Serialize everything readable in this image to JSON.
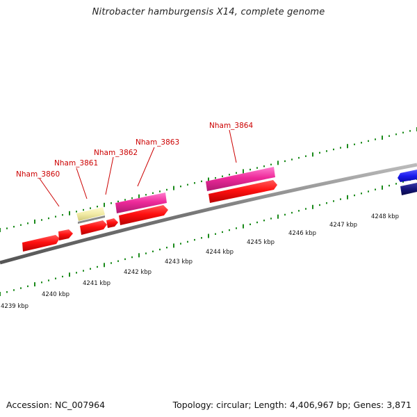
{
  "title": "Nitrobacter hamburgensis X14, complete genome",
  "footer": {
    "accession": "Accession: NC_007964",
    "summary": "Topology: circular; Length: 4,406,967 bp; Genes: 3,871"
  },
  "colors": {
    "backbone": "#888888",
    "tick": "#1a8a1a",
    "label_red": "#cc0000",
    "gene_red": "#ff1010",
    "gene_magenta": "#ee2a9a",
    "gene_yellow": "#f2eca6",
    "gene_blue": "#1a1aee",
    "gene_navy": "#15157a"
  },
  "gene_labels": [
    {
      "name": "Nham_3860"
    },
    {
      "name": "Nham_3861"
    },
    {
      "name": "Nham_3862"
    },
    {
      "name": "Nham_3863"
    },
    {
      "name": "Nham_3864"
    }
  ],
  "kbp_labels": [
    "4239 kbp",
    "4240 kbp",
    "4241 kbp",
    "4242 kbp",
    "4243 kbp",
    "4244 kbp",
    "4245 kbp",
    "4246 kbp",
    "4247 kbp",
    "4248 kbp"
  ]
}
